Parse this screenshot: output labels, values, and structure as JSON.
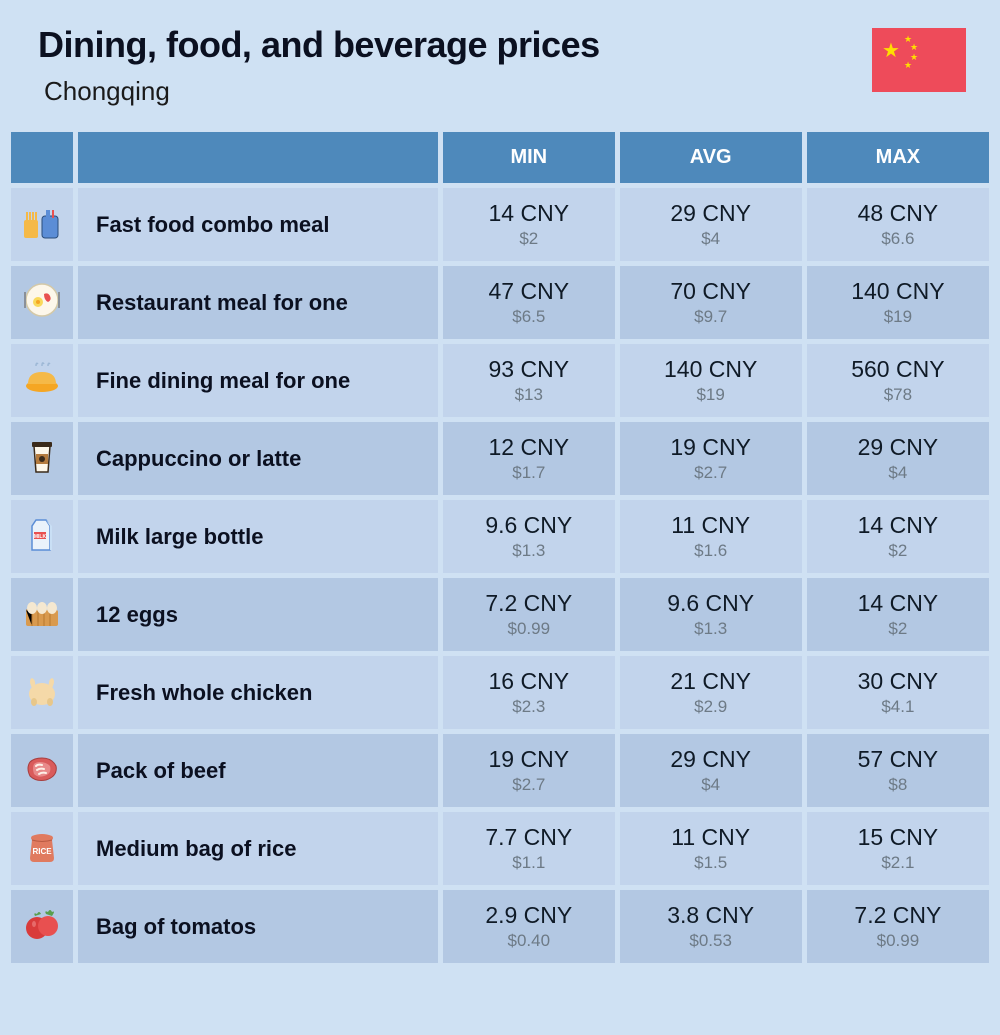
{
  "header": {
    "title": "Dining, food, and beverage prices",
    "subtitle": "Chongqing",
    "flag_bg": "#ee4b5a",
    "flag_star": "#ffde00"
  },
  "table": {
    "columns": [
      "",
      "",
      "MIN",
      "AVG",
      "MAX"
    ],
    "column_bg": "#4e89bb",
    "column_fg": "#ffffff",
    "row_bg_odd": "#c2d4ec",
    "row_bg_even": "#b3c8e3",
    "price_main_color": "#0f1a26",
    "price_sub_color": "#6d7a86",
    "rows": [
      {
        "icon": "fast-food-icon",
        "name": "Fast food combo meal",
        "min_cny": "14 CNY",
        "min_usd": "$2",
        "avg_cny": "29 CNY",
        "avg_usd": "$4",
        "max_cny": "48 CNY",
        "max_usd": "$6.6"
      },
      {
        "icon": "restaurant-meal-icon",
        "name": "Restaurant meal for one",
        "min_cny": "47 CNY",
        "min_usd": "$6.5",
        "avg_cny": "70 CNY",
        "avg_usd": "$9.7",
        "max_cny": "140 CNY",
        "max_usd": "$19"
      },
      {
        "icon": "fine-dining-icon",
        "name": "Fine dining meal for one",
        "min_cny": "93 CNY",
        "min_usd": "$13",
        "avg_cny": "140 CNY",
        "avg_usd": "$19",
        "max_cny": "560 CNY",
        "max_usd": "$78"
      },
      {
        "icon": "coffee-icon",
        "name": "Cappuccino or latte",
        "min_cny": "12 CNY",
        "min_usd": "$1.7",
        "avg_cny": "19 CNY",
        "avg_usd": "$2.7",
        "max_cny": "29 CNY",
        "max_usd": "$4"
      },
      {
        "icon": "milk-icon",
        "name": "Milk large bottle",
        "min_cny": "9.6 CNY",
        "min_usd": "$1.3",
        "avg_cny": "11 CNY",
        "avg_usd": "$1.6",
        "max_cny": "14 CNY",
        "max_usd": "$2"
      },
      {
        "icon": "eggs-icon",
        "name": "12 eggs",
        "min_cny": "7.2 CNY",
        "min_usd": "$0.99",
        "avg_cny": "9.6 CNY",
        "avg_usd": "$1.3",
        "max_cny": "14 CNY",
        "max_usd": "$2"
      },
      {
        "icon": "chicken-icon",
        "name": "Fresh whole chicken",
        "min_cny": "16 CNY",
        "min_usd": "$2.3",
        "avg_cny": "21 CNY",
        "avg_usd": "$2.9",
        "max_cny": "30 CNY",
        "max_usd": "$4.1"
      },
      {
        "icon": "beef-icon",
        "name": "Pack of beef",
        "min_cny": "19 CNY",
        "min_usd": "$2.7",
        "avg_cny": "29 CNY",
        "avg_usd": "$4",
        "max_cny": "57 CNY",
        "max_usd": "$8"
      },
      {
        "icon": "rice-icon",
        "name": "Medium bag of rice",
        "min_cny": "7.7 CNY",
        "min_usd": "$1.1",
        "avg_cny": "11 CNY",
        "avg_usd": "$1.5",
        "max_cny": "15 CNY",
        "max_usd": "$2.1"
      },
      {
        "icon": "tomato-icon",
        "name": "Bag of tomatos",
        "min_cny": "2.9 CNY",
        "min_usd": "$0.40",
        "avg_cny": "3.8 CNY",
        "avg_usd": "$0.53",
        "max_cny": "7.2 CNY",
        "max_usd": "$0.99"
      }
    ]
  },
  "icons": {
    "fast-food-icon": "<svg viewBox='0 0 40 40'><rect x='2' y='18' width='14' height='18' rx='2' fill='#f5b947'/><rect x='4' y='10' width='2' height='10' fill='#f5b947'/><rect x='7' y='10' width='2' height='10' fill='#f5b947'/><rect x='10' y='10' width='2' height='10' fill='#f5b947'/><rect x='13' y='10' width='2' height='10' fill='#f5b947'/><rect x='20' y='14' width='16' height='22' rx='3' fill='#5b8dd6' stroke='#2a4d7a'/><rect x='24' y='8' width='4' height='8' fill='#5b8dd6'/><rect x='30' y='8' width='2' height='8' fill='#e85050'/></svg>",
    "restaurant-meal-icon": "<svg viewBox='0 0 40 40'><circle cx='20' cy='20' r='16' fill='#fdf7ea' stroke='#d4c9a8' stroke-width='1.5'/><circle cx='16' cy='22' r='5' fill='#f9d95b'/><circle cx='16' cy='22' r='2' fill='#f5a623'/><path d='M22 14 Q26 12 28 16 Q30 20 26 22 Q22 20 22 14' fill='#e85050'/><rect x='2' y='12' width='2' height='16' fill='#8a9099'/><rect x='36' y='12' width='2' height='16' fill='#8a9099'/></svg>",
    "fine-dining-icon": "<svg viewBox='0 0 40 40'><ellipse cx='20' cy='28' rx='16' ry='6' fill='#f5a623'/><path d='M6 26 Q6 14 20 14 Q34 14 34 26' fill='#f5b947'/><path d='M14 8 Q14 4 16 6 M20 8 Q20 3 22 6 M26 8 Q26 4 28 6' stroke='#9db8d6' stroke-width='1.5' fill='none'/></svg>",
    "coffee-icon": "<svg viewBox='0 0 40 40'><path d='M12 10 L28 10 L26 36 L14 36 Z' fill='#fdf7ea' stroke='#3a2a1a' stroke-width='1.5'/><rect x='10' y='6' width='20' height='5' rx='1' fill='#3a2a1a'/><rect x='14' y='18' width='12' height='10' fill='#b47b3e'/><circle cx='20' cy='23' r='3' fill='#3a2a1a'/></svg>",
    "milk-icon": "<svg viewBox='0 0 40 40'><path d='M10 12 L10 36 L28 36 L28 12 L24 6 L14 6 Z' fill='#eaf2fb' stroke='#5b8dd6' stroke-width='1.5'/><path d='M24 6 L30 12 L30 36 L28 36 L28 12 Z' fill='#c9dff5'/><rect x='12' y='18' width='12' height='7' fill='#e85050'/><text x='18' y='24' font-size='5' fill='#fff' text-anchor='middle' font-weight='bold'>MILK</text></svg>",
    "eggs-icon": "<svg viewBox='0 0 40 40'><rect x='4' y='18' width='32' height='16' rx='2' fill='#d99a4e'/><path d='M4 18 L10 18 L10 34 M16 18 L16 34 M22 18 L22 34 M28 18 L28 34' stroke='#b8782e' stroke-width='1'/><ellipse cx='10' cy='16' rx='5' ry='6' fill='#f5e8d0'/><ellipse cx='20' cy='16' rx='5' ry='6' fill='#f5e8d0'/><ellipse cx='30' cy='16' rx='5' ry='6' fill='#f5e8d0'/></svg>",
    "chicken-icon": "<svg viewBox='0 0 40 40'><ellipse cx='20' cy='24' rx='13' ry='11' fill='#f5d9a8'/><path d='M10 18 Q6 10 10 8 Q14 10 13 16' fill='#f5d9a8'/><path d='M30 18 Q34 10 30 8 Q26 10 27 16' fill='#f5d9a8'/><ellipse cx='12' cy='32' rx='3' ry='4' fill='#e8c78a'/><ellipse cx='28' cy='32' rx='3' ry='4' fill='#e8c78a'/></svg>",
    "beef-icon": "<svg viewBox='0 0 40 40'><path d='M8 14 Q4 20 8 28 Q14 34 24 32 Q36 28 34 18 Q30 10 20 10 Q12 10 8 14' fill='#d95b5b' stroke='#a83e3e' stroke-width='1'/><path d='M12 16 Q10 20 12 26 Q16 30 22 28 Q30 26 28 18 Q24 14 18 14 Q14 14 12 16' fill='#e88a8a'/><path d='M14 18 Q16 16 20 17 M15 22 Q18 20 22 21 M17 26 Q20 24 24 25' stroke='#fdf0e8' stroke-width='2' fill='none' stroke-linecap='round'/></svg>",
    "rice-icon": "<svg viewBox='0 0 40 40'><path d='M10 14 Q8 12 10 10 Q20 6 30 10 Q32 12 30 14 L32 32 Q32 36 28 36 L12 36 Q8 36 8 32 Z' fill='#e07a5f'/><path d='M10 14 Q20 17 30 14' stroke='#b85a42' stroke-width='1' fill='none'/><text x='20' y='28' font-size='8' fill='#fff' text-anchor='middle' font-weight='bold'>RICE</text></svg>",
    "tomato-icon": "<svg viewBox='0 0 40 40'><circle cx='15' cy='24' r='11' fill='#d93b3b'/><circle cx='26' cy='22' r='10' fill='#e85050'/><path d='M24 10 Q22 6 26 8 Q28 4 30 8 Q34 6 30 12' fill='#5a9e4e'/><path d='M13 12 Q11 8 15 10 Q17 6 19 10' fill='#5a9e4e'/><ellipse cx='12' cy='20' rx='2' ry='3' fill='#f08a8a' opacity='0.6'/></svg>"
  }
}
